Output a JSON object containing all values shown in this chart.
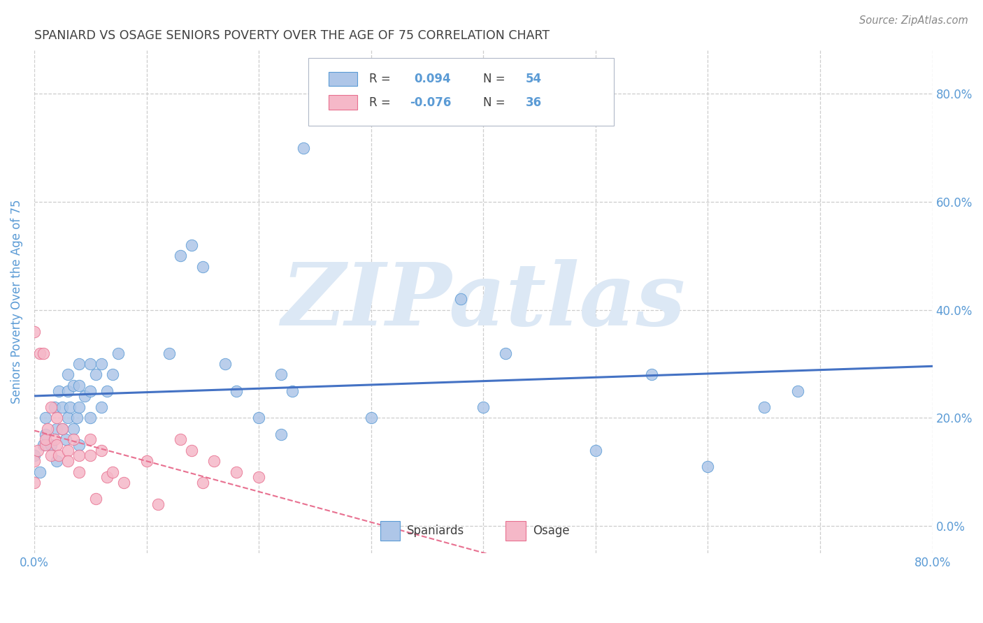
{
  "title": "SPANIARD VS OSAGE SENIORS POVERTY OVER THE AGE OF 75 CORRELATION CHART",
  "source": "Source: ZipAtlas.com",
  "ylabel": "Seniors Poverty Over the Age of 75",
  "xlim": [
    0.0,
    0.8
  ],
  "ylim": [
    -0.05,
    0.88
  ],
  "legend_labels": [
    "Spaniards",
    "Osage"
  ],
  "R_spaniards": "0.094",
  "N_spaniards": "54",
  "R_osage": "-0.076",
  "N_osage": "36",
  "blue_fill": "#aec6e8",
  "pink_fill": "#f5b8c8",
  "blue_edge": "#5b9bd5",
  "pink_edge": "#e87090",
  "blue_line": "#4472c4",
  "pink_line": "#e87090",
  "watermark": "ZIPatlas",
  "watermark_color": "#dce8f5",
  "background_color": "#ffffff",
  "grid_color": "#c8c8c8",
  "title_color": "#404040",
  "axis_label_color": "#5b9bd5",
  "right_tick_color": "#5b9bd5",
  "text_dark": "#404040",
  "text_blue": "#5b9bd5",
  "spaniards_x": [
    0.0,
    0.005,
    0.008,
    0.01,
    0.01,
    0.015,
    0.018,
    0.02,
    0.02,
    0.022,
    0.025,
    0.025,
    0.028,
    0.03,
    0.03,
    0.03,
    0.032,
    0.035,
    0.035,
    0.038,
    0.04,
    0.04,
    0.04,
    0.04,
    0.045,
    0.05,
    0.05,
    0.05,
    0.055,
    0.06,
    0.06,
    0.065,
    0.07,
    0.075,
    0.12,
    0.13,
    0.14,
    0.15,
    0.17,
    0.18,
    0.2,
    0.22,
    0.22,
    0.23,
    0.24,
    0.3,
    0.38,
    0.4,
    0.42,
    0.5,
    0.55,
    0.6,
    0.65,
    0.68
  ],
  "spaniards_y": [
    0.13,
    0.1,
    0.15,
    0.17,
    0.2,
    0.15,
    0.22,
    0.12,
    0.18,
    0.25,
    0.18,
    0.22,
    0.16,
    0.2,
    0.25,
    0.28,
    0.22,
    0.18,
    0.26,
    0.2,
    0.15,
    0.22,
    0.26,
    0.3,
    0.24,
    0.2,
    0.25,
    0.3,
    0.28,
    0.22,
    0.3,
    0.25,
    0.28,
    0.32,
    0.32,
    0.5,
    0.52,
    0.48,
    0.3,
    0.25,
    0.2,
    0.17,
    0.28,
    0.25,
    0.7,
    0.2,
    0.42,
    0.22,
    0.32,
    0.14,
    0.28,
    0.11,
    0.22,
    0.25
  ],
  "osage_x": [
    0.0,
    0.0,
    0.0,
    0.003,
    0.005,
    0.008,
    0.01,
    0.01,
    0.012,
    0.015,
    0.015,
    0.018,
    0.02,
    0.02,
    0.022,
    0.025,
    0.03,
    0.03,
    0.035,
    0.04,
    0.04,
    0.05,
    0.05,
    0.055,
    0.06,
    0.065,
    0.07,
    0.08,
    0.1,
    0.11,
    0.13,
    0.14,
    0.15,
    0.16,
    0.18,
    0.2
  ],
  "osage_y": [
    0.36,
    0.12,
    0.08,
    0.14,
    0.32,
    0.32,
    0.15,
    0.16,
    0.18,
    0.13,
    0.22,
    0.16,
    0.15,
    0.2,
    0.13,
    0.18,
    0.14,
    0.12,
    0.16,
    0.13,
    0.1,
    0.16,
    0.13,
    0.05,
    0.14,
    0.09,
    0.1,
    0.08,
    0.12,
    0.04,
    0.16,
    0.14,
    0.08,
    0.12,
    0.1,
    0.09
  ]
}
